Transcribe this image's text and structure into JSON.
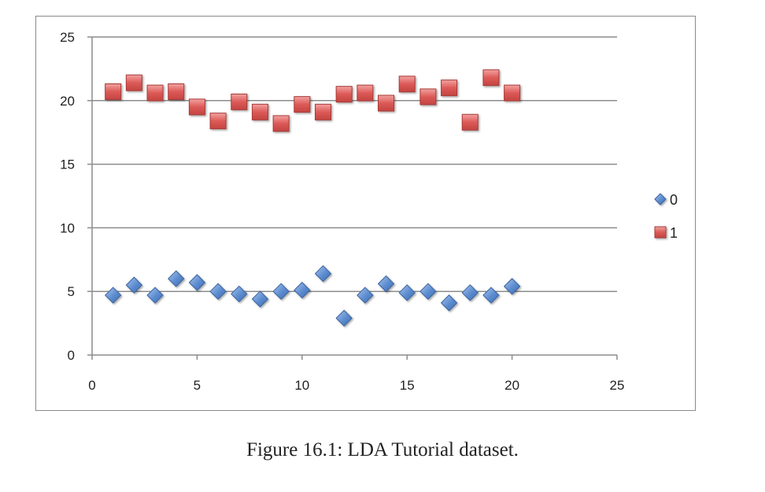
{
  "caption": "Figure 16.1: LDA Tutorial dataset.",
  "chart_data": {
    "type": "scatter",
    "title": "",
    "xlabel": "",
    "ylabel": "",
    "xlim": [
      0,
      25
    ],
    "ylim": [
      0,
      25
    ],
    "x_ticks": [
      "0",
      "5",
      "10",
      "15",
      "20",
      "25"
    ],
    "y_ticks": [
      "0",
      "5",
      "10",
      "15",
      "20",
      "25"
    ],
    "grid": "horizontal major gridlines",
    "legend_position": "right",
    "series": [
      {
        "name": "0",
        "marker": "diamond",
        "color": "#4f81bd",
        "x": [
          1,
          2,
          3,
          4,
          5,
          6,
          7,
          8,
          9,
          10,
          11,
          12,
          13,
          14,
          15,
          16,
          17,
          18,
          19,
          20
        ],
        "y": [
          4.7,
          5.5,
          4.7,
          6.0,
          5.7,
          5.0,
          4.8,
          4.4,
          5.0,
          5.1,
          6.4,
          2.9,
          4.7,
          5.6,
          4.9,
          5.0,
          4.1,
          4.9,
          4.7,
          5.4
        ]
      },
      {
        "name": "1",
        "marker": "square",
        "color": "#c0504d",
        "x": [
          1,
          2,
          3,
          4,
          5,
          6,
          7,
          8,
          9,
          10,
          11,
          12,
          13,
          14,
          15,
          16,
          17,
          18,
          19,
          20
        ],
        "y": [
          20.7,
          21.4,
          20.6,
          20.7,
          19.5,
          18.4,
          19.9,
          19.1,
          18.2,
          19.7,
          19.1,
          20.5,
          20.6,
          19.8,
          21.3,
          20.3,
          21.0,
          18.3,
          21.8,
          20.6
        ]
      }
    ]
  }
}
